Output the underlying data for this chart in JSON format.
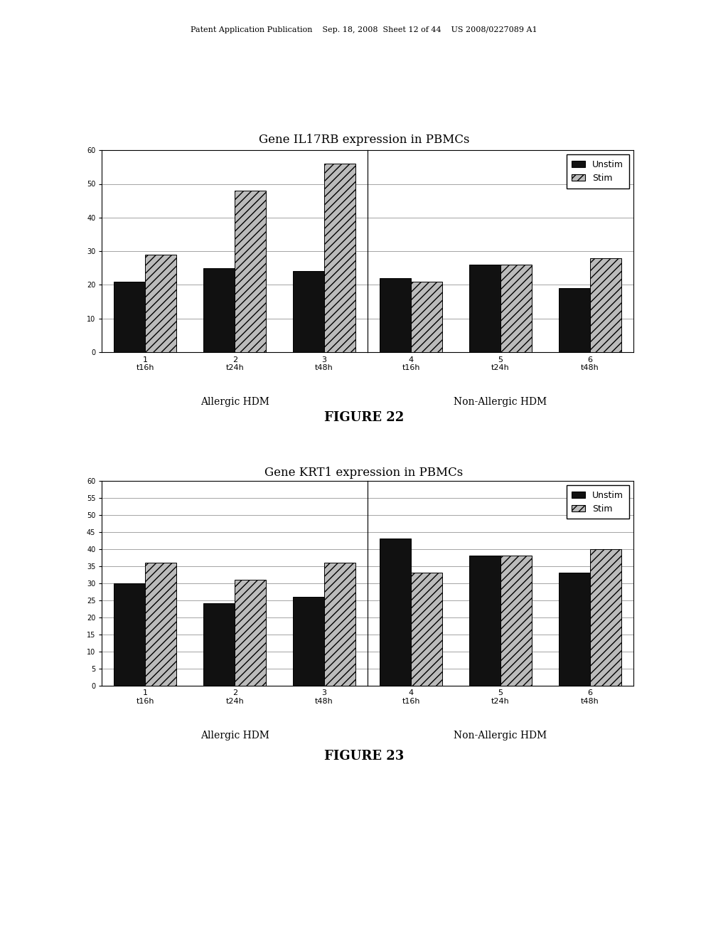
{
  "fig22": {
    "title": "Gene IL17RB expression in PBMCs",
    "figure_label": "FIGURE 22",
    "ylim": [
      0,
      60
    ],
    "yticks": [
      0,
      10,
      20,
      30,
      40,
      50,
      60
    ],
    "allergic": {
      "label": "Allergic HDM",
      "timepoints": [
        "t16h",
        "t24h",
        "t48h"
      ],
      "tick_numbers": [
        "1",
        "2",
        "3"
      ],
      "unstim": [
        21,
        25,
        24
      ],
      "stim": [
        29,
        48,
        56
      ]
    },
    "non_allergic": {
      "label": "Non-Allergic HDM",
      "timepoints": [
        "t16h",
        "t24h",
        "t48h"
      ],
      "tick_numbers": [
        "4",
        "5",
        "6"
      ],
      "unstim": [
        22,
        26,
        19
      ],
      "stim": [
        21,
        26,
        28
      ]
    }
  },
  "fig23": {
    "title": "Gene KRT1 expression in PBMCs",
    "figure_label": "FIGURE 23",
    "ylim": [
      0,
      60
    ],
    "yticks": [
      0,
      5,
      10,
      15,
      20,
      25,
      30,
      35,
      40,
      45,
      50,
      55,
      60
    ],
    "allergic": {
      "label": "Allergic HDM",
      "timepoints": [
        "t16h",
        "t24h",
        "t48h"
      ],
      "tick_numbers": [
        "1",
        "2",
        "3"
      ],
      "unstim": [
        30,
        24,
        26
      ],
      "stim": [
        36,
        31,
        36
      ]
    },
    "non_allergic": {
      "label": "Non-Allergic HDM",
      "timepoints": [
        "t16h",
        "t24h",
        "t48h"
      ],
      "tick_numbers": [
        "4",
        "5",
        "6"
      ],
      "unstim": [
        43,
        38,
        33
      ],
      "stim": [
        33,
        38,
        40
      ]
    }
  },
  "header_text": "Patent Application Publication    Sep. 18, 2008  Sheet 12 of 44    US 2008/0227089 A1",
  "unstim_color": "#111111",
  "stim_color": "#bbbbbb",
  "stim_hatch": "///",
  "bar_width": 0.35,
  "background_color": "#ffffff"
}
